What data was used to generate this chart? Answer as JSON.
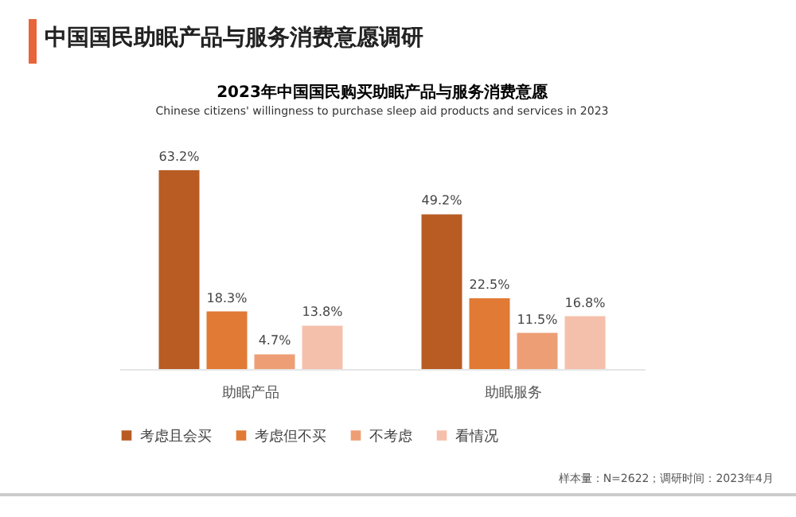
{
  "chart_data": {
    "type": "bar",
    "title": "2023年中国国民购买助眠产品与服务消费意愿",
    "subtitle": "Chinese citizens' willingness to purchase sleep aid products and services in 2023",
    "categories": [
      "助眠产品",
      "助眠服务"
    ],
    "series": [
      {
        "name": "考虑且会买",
        "color": "#b85c24",
        "values": [
          63.2,
          49.2
        ],
        "value_labels": [
          "63.2%",
          "49.2%"
        ]
      },
      {
        "name": "考虑但不买",
        "color": "#e07a35",
        "values": [
          18.3,
          22.5
        ],
        "value_labels": [
          "18.3%",
          "22.5%"
        ]
      },
      {
        "name": "不考虑",
        "color": "#ee9e74",
        "values": [
          4.7,
          11.5
        ],
        "value_labels": [
          "4.7%",
          "11.5%"
        ]
      },
      {
        "name": "看情况",
        "color": "#f5c0ab",
        "values": [
          13.8,
          16.8
        ],
        "value_labels": [
          "13.8%",
          "16.8%"
        ]
      }
    ],
    "legend": "bottom",
    "annotations": [
      "中国国民助眠产品与服务消费意愿调研",
      "样本量：N=2622；调研时间：2023年4月"
    ]
  }
}
